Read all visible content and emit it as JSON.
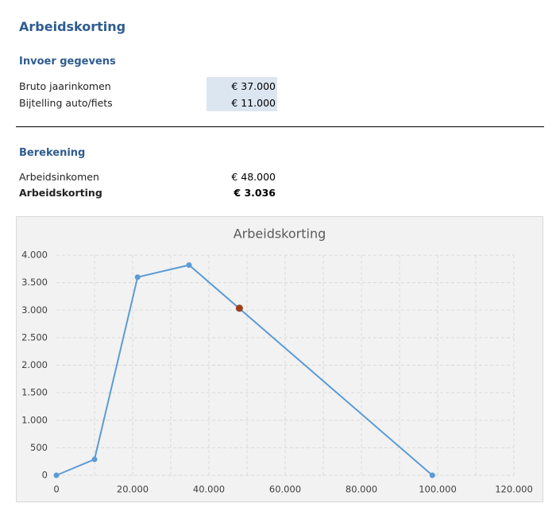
{
  "header": {
    "title": "Arbeidskorting"
  },
  "input": {
    "title": "Invoer gegevens",
    "rows": [
      [
        "Bruto jaarinkomen",
        "€ 37.000"
      ],
      [
        "Bijtelling auto/fiets",
        "€ 11.000"
      ]
    ]
  },
  "calculation": {
    "title": "Berekening",
    "rows": [
      [
        "Arbeidsinkomen",
        "€ 48.000"
      ],
      [
        "Arbeidskorting",
        "€ 3.036"
      ]
    ]
  },
  "chart_data": {
    "type": "line",
    "title": "Arbeidskorting",
    "series": [
      {
        "color": "#5b9bd5",
        "x": [
          0,
          10000,
          21300,
          34800,
          98600
        ],
        "values": [
          0,
          290,
          3600,
          3820,
          0
        ]
      },
      {
        "color": "#9e3f1b",
        "x": [
          48000
        ],
        "values": [
          3036
        ],
        "markers_only": true
      }
    ],
    "xlim": [
      0,
      120000
    ],
    "xticks": [
      0,
      {
        "value": 20000,
        "label": "20.000"
      },
      {
        "value": 40000,
        "label": "40.000"
      },
      {
        "value": 60000,
        "label": "60.000"
      },
      {
        "value": 80000,
        "label": "80.000"
      },
      {
        "value": 100000,
        "label": "100.000"
      },
      {
        "value": 120000,
        "label": "120.000"
      }
    ],
    "xgrid": [
      10000,
      20000,
      30000,
      40000,
      50000,
      60000,
      70000,
      80000,
      90000,
      100000,
      110000,
      120000
    ],
    "ylim": [
      0,
      4000
    ],
    "yticks": [
      0,
      500,
      {
        "value": 1000,
        "label": "1.000"
      },
      {
        "value": 1500,
        "label": "1.500"
      },
      {
        "value": 2000,
        "label": "2.000"
      },
      {
        "value": 2500,
        "label": "2.500"
      },
      {
        "value": 3000,
        "label": "3.000"
      },
      {
        "value": 3500,
        "label": "3.500"
      },
      {
        "value": 4000,
        "label": "4.000"
      }
    ],
    "grid": true
  }
}
